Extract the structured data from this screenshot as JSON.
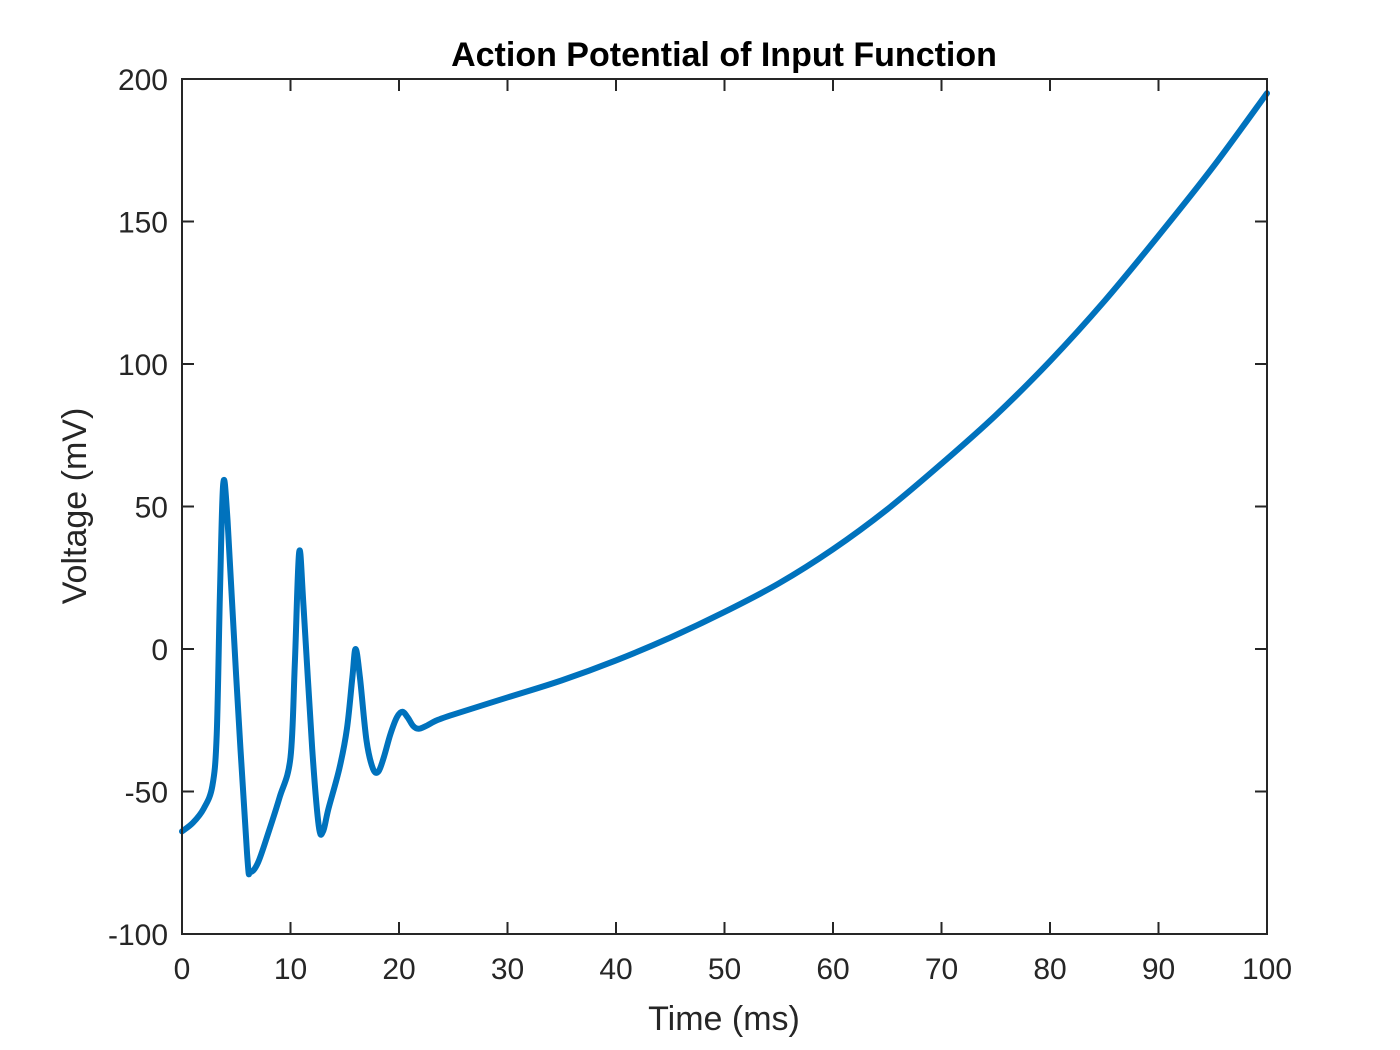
{
  "chart_data": {
    "type": "line",
    "title": "Action Potential of Input Function",
    "xlabel": "Time (ms)",
    "ylabel": "Voltage (mV)",
    "xlim": [
      0,
      100
    ],
    "ylim": [
      -100,
      200
    ],
    "xticks": [
      0,
      10,
      20,
      30,
      40,
      50,
      60,
      70,
      80,
      90,
      100
    ],
    "yticks": [
      -100,
      -50,
      0,
      50,
      100,
      150,
      200
    ],
    "xtick_labels": [
      "0",
      "10",
      "20",
      "30",
      "40",
      "50",
      "60",
      "70",
      "80",
      "90",
      "100"
    ],
    "ytick_labels": [
      "-100",
      "-50",
      "0",
      "50",
      "100",
      "150",
      "200"
    ],
    "grid": false,
    "box": true,
    "series": [
      {
        "name": "Voltage",
        "color": "#0072BD",
        "x": [
          0,
          1,
          2,
          2.8,
          3.2,
          3.5,
          3.8,
          4.2,
          5,
          6,
          6.3,
          7,
          8,
          9,
          10,
          10.4,
          10.8,
          11.2,
          12,
          12.6,
          13,
          13.5,
          14.5,
          15.2,
          15.7,
          16,
          16.4,
          17,
          17.6,
          18.1,
          18.6,
          19.2,
          19.8,
          20.3,
          20.8,
          21.3,
          21.8,
          22.5,
          23.5,
          25,
          30,
          35,
          40,
          45,
          50,
          55,
          60,
          65,
          70,
          75,
          80,
          85,
          90,
          95,
          100
        ],
        "y": [
          -64,
          -61,
          -56,
          -48,
          -30,
          20,
          58,
          45,
          -10,
          -72,
          -78,
          -75,
          -64,
          -52,
          -38,
          -5,
          34,
          15,
          -35,
          -62,
          -64,
          -56,
          -42,
          -28,
          -10,
          0,
          -10,
          -32,
          -42,
          -43,
          -38,
          -30,
          -24,
          -22,
          -24,
          -27,
          -28,
          -27,
          -25,
          -23,
          -17,
          -11,
          -4,
          4,
          13,
          23,
          35,
          49,
          65,
          82,
          101,
          122,
          145,
          169,
          195
        ]
      }
    ]
  }
}
